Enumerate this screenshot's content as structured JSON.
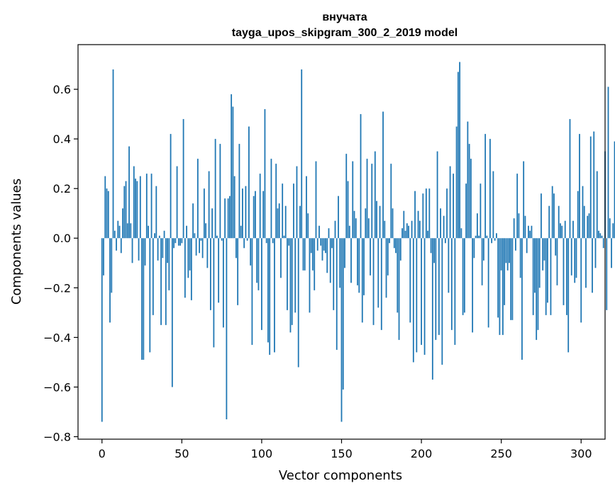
{
  "chart_data": {
    "type": "bar",
    "title": "внучата",
    "subtitle": "tayga_upos_skipgram_300_2_2019 model",
    "xlabel": "Vector components",
    "ylabel": "Components values",
    "xlim": [
      -15,
      315
    ],
    "ylim": [
      -0.81,
      0.78
    ],
    "xticks": [
      0,
      50,
      100,
      150,
      200,
      250,
      300
    ],
    "yticks": [
      -0.8,
      -0.6,
      -0.4,
      -0.2,
      0.0,
      0.2,
      0.4,
      0.6
    ],
    "ytick_labels": [
      "−0.8",
      "−0.6",
      "−0.4",
      "−0.2",
      "0.0",
      "0.2",
      "0.4",
      "0.6"
    ],
    "bar_color": "#1f77b4",
    "grid": false,
    "values": [
      -0.74,
      -0.15,
      0.25,
      0.2,
      0.19,
      -0.34,
      -0.22,
      0.68,
      0.03,
      -0.05,
      0.07,
      0.05,
      -0.06,
      0.12,
      0.21,
      0.23,
      0.06,
      0.37,
      0.06,
      -0.1,
      0.29,
      0.24,
      0.23,
      -0.09,
      0.25,
      -0.49,
      -0.49,
      -0.11,
      0.26,
      0.05,
      -0.46,
      0.26,
      -0.31,
      0.02,
      0.21,
      -0.09,
      0.01,
      -0.35,
      -0.08,
      0.03,
      -0.35,
      -0.1,
      -0.21,
      0.42,
      -0.6,
      -0.04,
      -0.02,
      0.29,
      -0.03,
      -0.03,
      -0.02,
      0.48,
      -0.24,
      0.05,
      -0.16,
      -0.13,
      -0.25,
      0.14,
      0.02,
      -0.07,
      0.32,
      -0.06,
      -0.01,
      -0.08,
      0.2,
      0.06,
      -0.12,
      0.27,
      -0.29,
      0.12,
      -0.44,
      0.4,
      0.01,
      -0.26,
      0.38,
      -0.01,
      -0.36,
      0.16,
      -0.73,
      0.16,
      0.17,
      0.58,
      0.53,
      0.25,
      -0.08,
      -0.27,
      0.38,
      0.05,
      0.2,
      -0.04,
      0.21,
      -0.01,
      0.45,
      -0.11,
      -0.43,
      0.17,
      0.19,
      -0.18,
      -0.21,
      0.26,
      -0.37,
      0.19,
      0.52,
      -0.02,
      -0.42,
      -0.47,
      0.32,
      -0.02,
      -0.46,
      0.3,
      0.12,
      0.14,
      -0.16,
      0.22,
      0.01,
      0.13,
      -0.29,
      -0.03,
      -0.38,
      -0.35,
      0.22,
      -0.3,
      0.29,
      -0.52,
      0.13,
      0.68,
      -0.13,
      -0.13,
      0.25,
      0.1,
      -0.3,
      -0.06,
      -0.13,
      -0.21,
      0.31,
      -0.05,
      0.05,
      -0.03,
      -0.09,
      -0.05,
      -0.06,
      -0.14,
      0.04,
      -0.18,
      -0.04,
      -0.29,
      0.07,
      -0.45,
      0.17,
      -0.2,
      -0.74,
      -0.61,
      -0.12,
      0.34,
      0.23,
      0.05,
      -0.18,
      0.31,
      0.11,
      0.08,
      -0.19,
      -0.22,
      0.5,
      -0.34,
      -0.23,
      0.12,
      0.32,
      0.08,
      -0.15,
      0.3,
      -0.35,
      0.35,
      0.15,
      -0.28,
      0.13,
      -0.37,
      0.51,
      0.07,
      -0.24,
      -0.15,
      -0.02,
      0.3,
      0.12,
      -0.04,
      -0.06,
      -0.3,
      -0.41,
      -0.09,
      0.04,
      0.11,
      0.03,
      0.06,
      0.05,
      -0.34,
      0.07,
      -0.5,
      0.19,
      -0.46,
      0.11,
      0.07,
      -0.43,
      0.18,
      -0.47,
      0.2,
      0.03,
      0.2,
      -0.06,
      -0.57,
      -0.1,
      -0.41,
      0.35,
      -0.39,
      0.12,
      -0.51,
      0.09,
      -0.02,
      0.2,
      -0.22,
      0.29,
      -0.37,
      0.26,
      -0.43,
      0.45,
      0.67,
      0.71,
      0.04,
      -0.31,
      -0.3,
      0.22,
      0.47,
      0.38,
      0.32,
      -0.38,
      -0.08,
      0.01,
      0.1,
      0.01,
      0.22,
      -0.19,
      -0.09,
      0.42,
      0.01,
      -0.36,
      0.4,
      -0.02,
      0.27,
      -0.01,
      0.02,
      -0.32,
      -0.39,
      -0.13,
      -0.39,
      -0.27,
      -0.1,
      -0.13,
      -0.1,
      -0.33,
      -0.33,
      0.08,
      -0.05,
      0.26,
      0.1,
      -0.16,
      -0.49,
      0.31,
      0.09,
      -0.06,
      0.05,
      0.03,
      0.05,
      -0.31,
      -0.22,
      -0.41,
      -0.37,
      -0.2,
      0.18,
      -0.13,
      -0.09,
      -0.31,
      -0.26,
      0.13,
      -0.31,
      0.21,
      0.18,
      -0.07,
      -0.19,
      0.13,
      0.06,
      0.05,
      -0.27,
      0.07,
      -0.31,
      -0.46,
      0.48,
      -0.15,
      0.07,
      -0.18,
      -0.16,
      0.19,
      0.42,
      -0.34,
      0.21,
      0.13,
      -0.2,
      0.09,
      0.1,
      0.41,
      -0.22,
      0.43,
      -0.12,
      0.27,
      0.03,
      0.02,
      0.01,
      -0.04,
      0.35,
      -0.29,
      0.61,
      0.08,
      -0.12,
      0.06,
      0.39,
      -0.01
    ]
  }
}
